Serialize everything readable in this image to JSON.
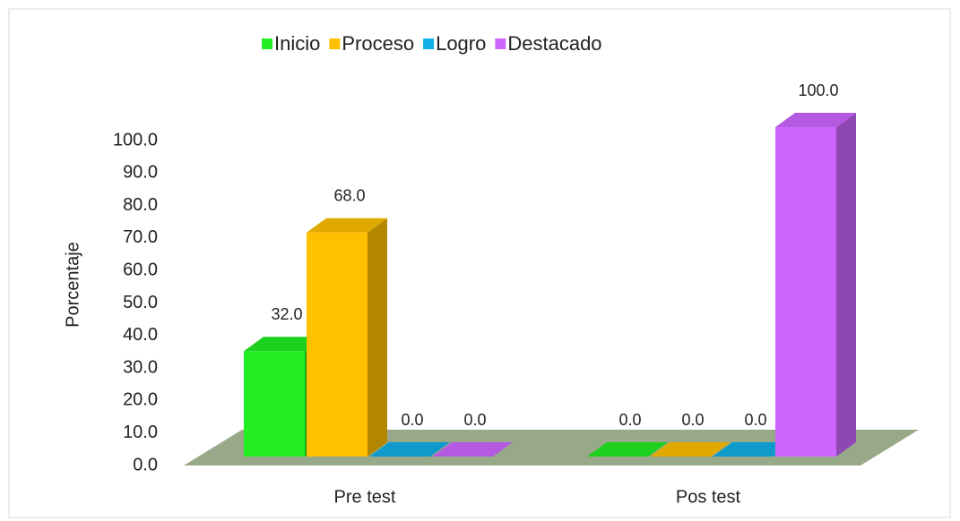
{
  "chart_data": {
    "type": "bar3d",
    "categories": [
      "Pre test",
      "Pos test"
    ],
    "series": [
      {
        "name": "Inicio",
        "color": "#22ee22",
        "values": [
          32,
          0
        ],
        "value_labels": [
          "32.0",
          "0.0"
        ]
      },
      {
        "name": "Proceso",
        "color": "#ffc000",
        "values": [
          68,
          0
        ],
        "value_labels": [
          "68.0",
          "0.0"
        ]
      },
      {
        "name": "Logro",
        "color": "#10b0e8",
        "values": [
          0,
          0
        ],
        "value_labels": [
          "0.0",
          "0.0"
        ]
      },
      {
        "name": "Destacado",
        "color": "#cc66ff",
        "values": [
          0,
          100
        ],
        "value_labels": [
          "0.0",
          "100.0"
        ]
      }
    ],
    "ylabel": "Porcentaje",
    "ylim": [
      0,
      100
    ],
    "yticks": [
      {
        "value": 0,
        "label": "0.0"
      },
      {
        "value": 10,
        "label": "10.0"
      },
      {
        "value": 20,
        "label": "20.0"
      },
      {
        "value": 30,
        "label": "30.0"
      },
      {
        "value": 40,
        "label": "40.0"
      },
      {
        "value": 50,
        "label": "50.0"
      },
      {
        "value": 60,
        "label": "60.0"
      },
      {
        "value": 70,
        "label": "70.0"
      },
      {
        "value": 80,
        "label": "80.0"
      },
      {
        "value": 90,
        "label": "90.0"
      },
      {
        "value": 100,
        "label": "100.0"
      }
    ],
    "legend": "top"
  }
}
